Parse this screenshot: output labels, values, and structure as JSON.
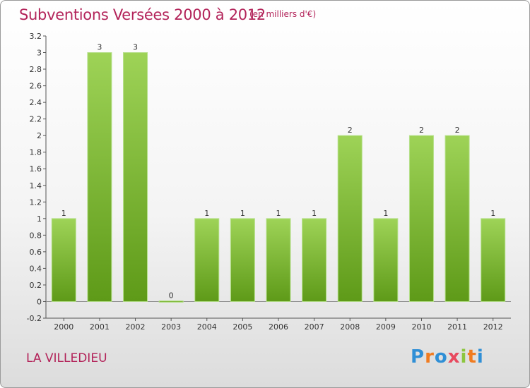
{
  "chart_data": {
    "type": "bar",
    "title": "Subventions Versées 2000 à 2012",
    "unit_note": "(en milliers d'€)",
    "categories": [
      "2000",
      "2001",
      "2002",
      "2003",
      "2004",
      "2005",
      "2006",
      "2007",
      "2008",
      "2009",
      "2010",
      "2011",
      "2012"
    ],
    "values": [
      1,
      3,
      3,
      0,
      1,
      1,
      1,
      1,
      2,
      1,
      2,
      2,
      1
    ],
    "data_labels": [
      "1",
      "3",
      "3",
      "0",
      "1",
      "1",
      "1",
      "1",
      "2",
      "1",
      "2",
      "2",
      "1"
    ],
    "y_ticks": [
      "-0.2",
      "0",
      "0.2",
      "0.4",
      "0.6",
      "0.8",
      "1",
      "1.2",
      "1.4",
      "1.6",
      "1.8",
      "2",
      "2.2",
      "2.4",
      "2.6",
      "2.8",
      "3",
      "3.2"
    ],
    "ylim": [
      -0.2,
      3.2
    ],
    "bar_color": "#8cc63f",
    "bar_color_dark": "#5e9a18",
    "grid": false
  },
  "footer": {
    "commune": "LA VILLEDIEU",
    "logo_text": "Proxiti"
  }
}
